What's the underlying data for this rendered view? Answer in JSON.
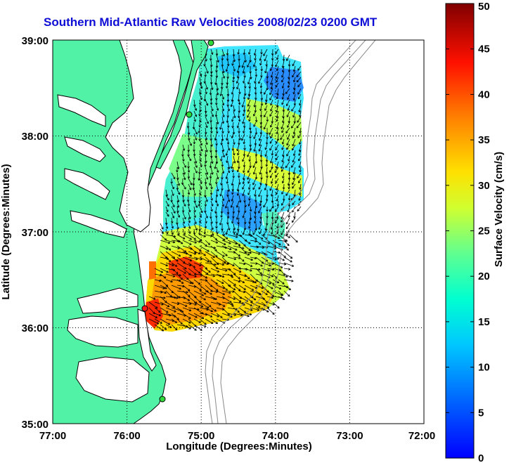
{
  "title": "Southern Mid-Atlantic Raw Velocities 2008/02/23 0200 GMT",
  "colors": {
    "title": "#0d0dd6",
    "land": "#52f2a6",
    "water": "#ffffff",
    "coast_line": "#000000",
    "bathymetry": "#8a8a8a",
    "station_green": "#2fd93a",
    "station_red": "#ff1a1a"
  },
  "map": {
    "x_label": "Longitude (Degrees:Minutes)",
    "y_label": "Latitude (Degrees:Minutes)",
    "lon_ticks": [
      "77:00",
      "76:00",
      "75:00",
      "74:00",
      "73:00",
      "72:00"
    ],
    "lat_ticks": [
      "39:00",
      "38:00",
      "37:00",
      "36:00",
      "35:00"
    ],
    "lon_range": [
      -77,
      -72
    ],
    "lat_range": [
      35,
      39
    ],
    "grid": "dotted",
    "stations": [
      {
        "name": "north",
        "color": "green"
      },
      {
        "name": "middle",
        "color": "green"
      },
      {
        "name": "south-green",
        "color": "green"
      },
      {
        "name": "south-red",
        "color": "red"
      }
    ]
  },
  "colorbar": {
    "label": "Surface Velocity (cm/s)",
    "ticks": [
      "0",
      "5",
      "10",
      "15",
      "20",
      "25",
      "30",
      "35",
      "40",
      "45",
      "50"
    ],
    "range": [
      0,
      50
    ],
    "colormap": "jet"
  }
}
